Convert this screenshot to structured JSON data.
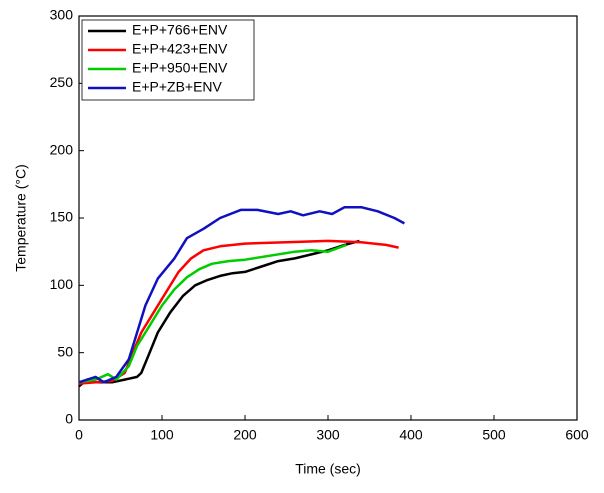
{
  "chart_data": {
    "type": "line",
    "x_label": "Time (sec)",
    "y_label": "Temperature (°C)",
    "xlim": [
      0,
      600
    ],
    "xticks": [
      0,
      100,
      200,
      300,
      400,
      500,
      600
    ],
    "ylim": [
      0,
      300
    ],
    "yticks": [
      0,
      50,
      100,
      150,
      200,
      250,
      300
    ],
    "legend": "upper left",
    "series": [
      {
        "name": "E+P+766+ENV",
        "color": "#000000",
        "x": [
          0,
          10,
          20,
          40,
          55,
          70,
          75,
          85,
          95,
          110,
          125,
          140,
          155,
          170,
          185,
          200,
          220,
          240,
          260,
          280,
          300,
          320,
          338
        ],
        "values": [
          25,
          30,
          28,
          28,
          30,
          32,
          35,
          50,
          65,
          80,
          92,
          100,
          104,
          107,
          109,
          110,
          114,
          118,
          120,
          123,
          126,
          130,
          133
        ]
      },
      {
        "name": "E+P+423+ENV",
        "color": "#ff0000",
        "x": [
          0,
          20,
          40,
          55,
          65,
          75,
          90,
          105,
          120,
          135,
          150,
          170,
          200,
          250,
          300,
          340,
          370,
          385
        ],
        "values": [
          27,
          28,
          29,
          35,
          50,
          65,
          80,
          95,
          110,
          120,
          126,
          129,
          131,
          132,
          133,
          132,
          130,
          128
        ]
      },
      {
        "name": "E+P+950+ENV",
        "color": "#00cc00",
        "x": [
          0,
          20,
          35,
          45,
          60,
          70,
          85,
          100,
          115,
          130,
          145,
          160,
          180,
          200,
          230,
          260,
          280,
          300,
          322
        ],
        "values": [
          28,
          30,
          34,
          30,
          40,
          55,
          70,
          85,
          97,
          106,
          112,
          116,
          118,
          119,
          122,
          125,
          126,
          125,
          130
        ]
      },
      {
        "name": "E+P+ZB+ENV",
        "color": "#1010c0",
        "x": [
          0,
          10,
          20,
          30,
          45,
          60,
          70,
          80,
          95,
          115,
          130,
          150,
          170,
          195,
          215,
          240,
          255,
          270,
          290,
          305,
          320,
          340,
          360,
          380,
          392
        ],
        "values": [
          28,
          30,
          32,
          28,
          32,
          45,
          65,
          85,
          105,
          120,
          135,
          142,
          150,
          156,
          156,
          153,
          155,
          152,
          155,
          153,
          158,
          158,
          155,
          150,
          146
        ]
      }
    ]
  }
}
